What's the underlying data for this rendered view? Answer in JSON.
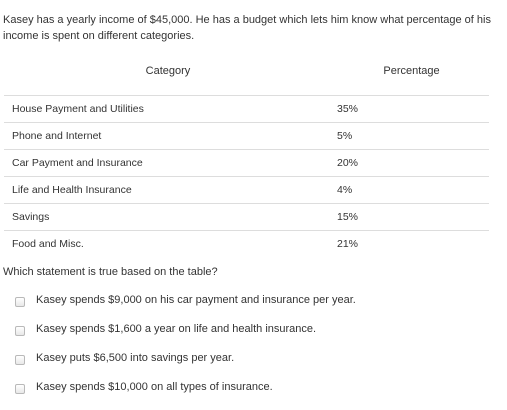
{
  "intro": "Kasey has a yearly income of $45,000. He has a budget which lets him know what percentage of his income is spent on different categories.",
  "table": {
    "headers": {
      "category": "Category",
      "percentage": "Percentage"
    },
    "rows": [
      {
        "category": "House Payment and Utilities",
        "percentage": "35%"
      },
      {
        "category": "Phone and Internet",
        "percentage": "5%"
      },
      {
        "category": "Car Payment and Insurance",
        "percentage": "20%"
      },
      {
        "category": "Life and Health Insurance",
        "percentage": "4%"
      },
      {
        "category": "Savings",
        "percentage": "15%"
      },
      {
        "category": "Food and Misc.",
        "percentage": "21%"
      }
    ]
  },
  "question": "Which statement is true based on the table?",
  "options": [
    "Kasey spends $9,000 on his car payment and insurance per year.",
    "Kasey spends $1,600 a year on life and health insurance.",
    "Kasey puts $6,500 into savings per year.",
    "Kasey spends $10,000 on all types of insurance."
  ]
}
